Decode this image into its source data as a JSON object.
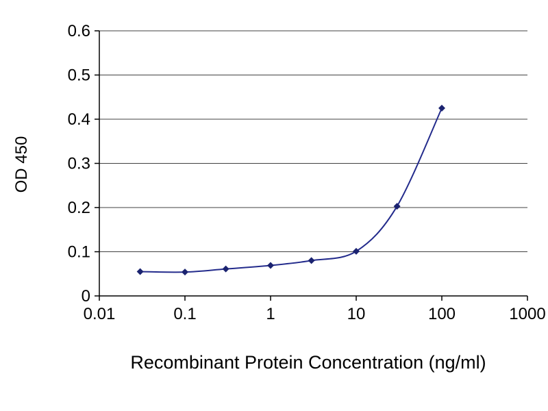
{
  "chart_data": {
    "type": "line",
    "title": "",
    "xlabel": "Recombinant Protein Concentration (ng/ml)",
    "ylabel": "OD 450",
    "x_scale": "log",
    "xlim": [
      0.01,
      1000
    ],
    "ylim": [
      0,
      0.6
    ],
    "x_ticks": [
      "0.01",
      "0.1",
      "1",
      "10",
      "100",
      "1000"
    ],
    "y_ticks": [
      "0",
      "0.1",
      "0.2",
      "0.3",
      "0.4",
      "0.5",
      "0.6"
    ],
    "grid": "horizontal",
    "legend": "none",
    "colors": {
      "line": "#232B8C",
      "marker": "#1B2370",
      "grid": "#404040",
      "axis": "#000000",
      "background": "#FFFFFF",
      "text": "#000000"
    },
    "series": [
      {
        "name": "OD 450",
        "marker": "diamond",
        "x": [
          0.03,
          0.1,
          0.3,
          1,
          3,
          10,
          30,
          100
        ],
        "y": [
          0.055,
          0.054,
          0.061,
          0.069,
          0.08,
          0.101,
          0.203,
          0.425
        ]
      }
    ]
  }
}
